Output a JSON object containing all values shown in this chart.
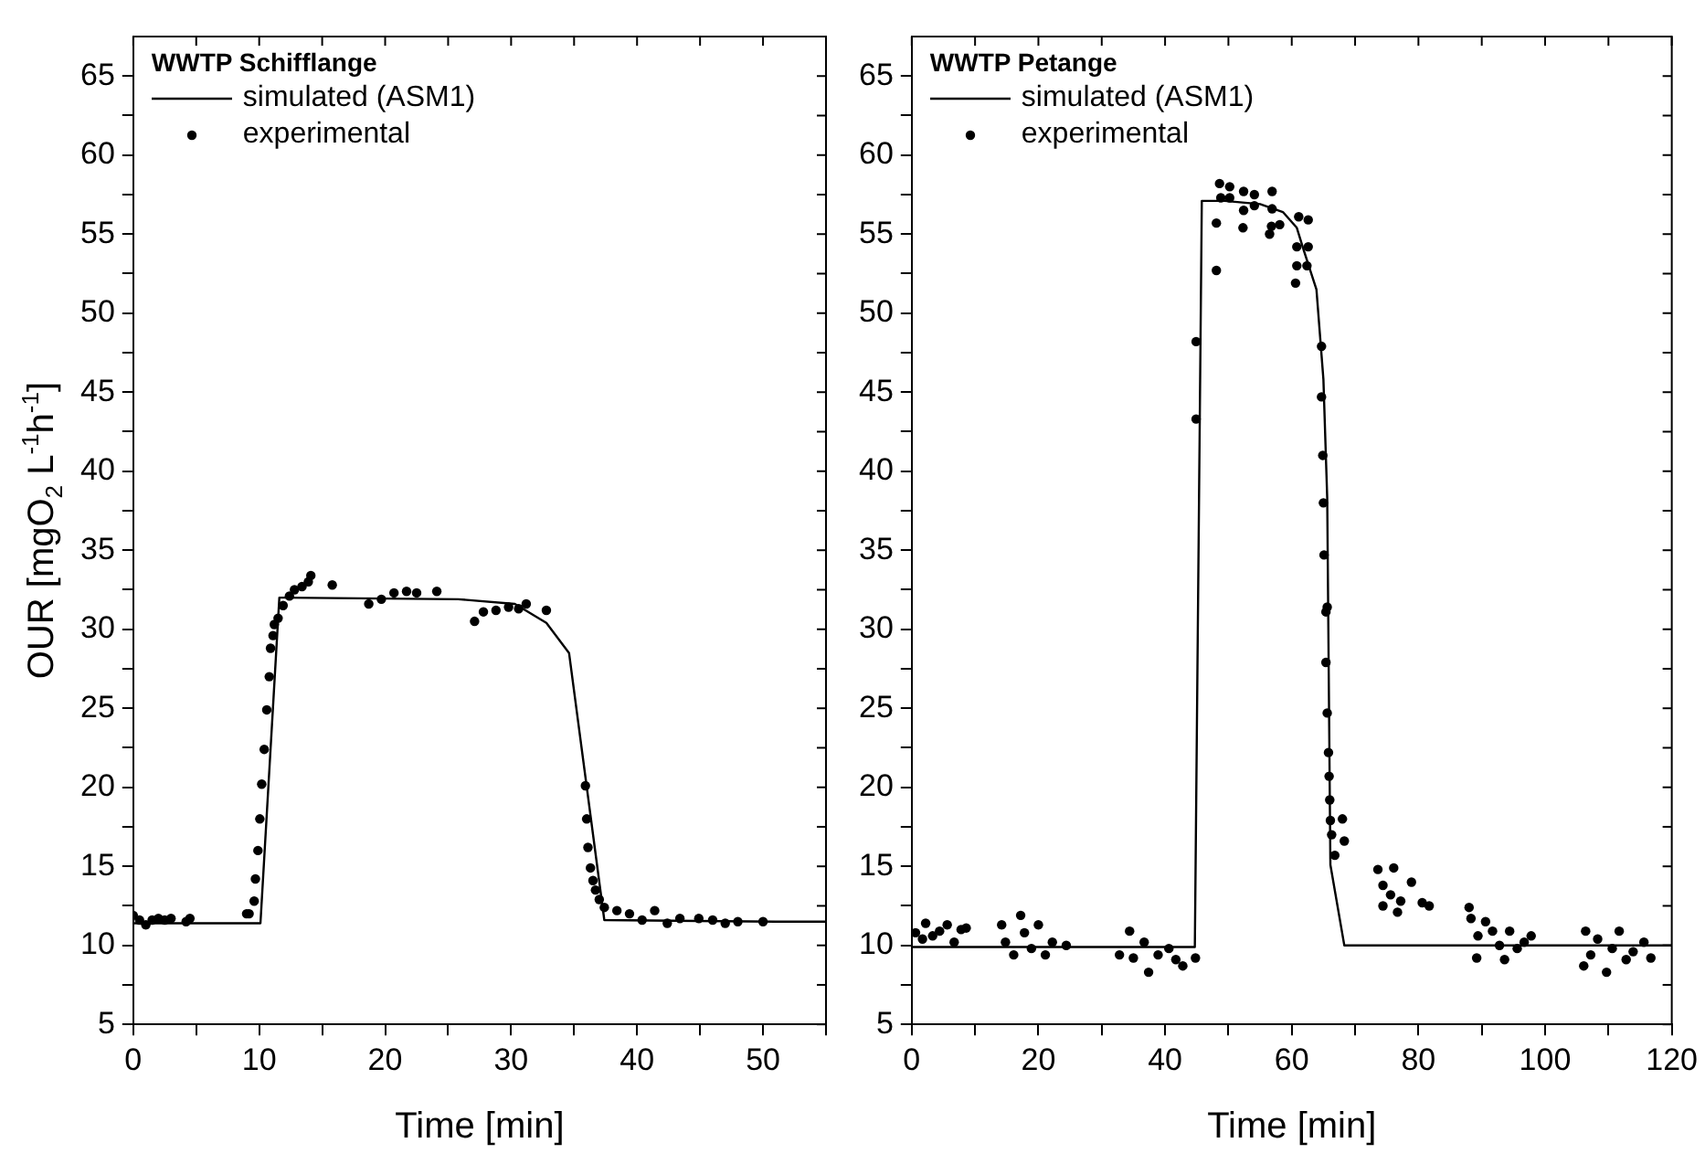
{
  "chart_data": [
    {
      "type": "scatter",
      "ylabel": "OUR [mgO$_{2}$ L$^{-1}$h$^{-1}$]",
      "xlabel": "Time [min]",
      "legend_title": "WWTP Schifflange",
      "legend": "top left",
      "grid": false,
      "xlim": [
        0,
        55
      ],
      "xticks": [
        0,
        {
          "value": 5,
          "label": null
        },
        10,
        {
          "value": 15,
          "label": null
        },
        20,
        {
          "value": 25,
          "label": null
        },
        30,
        {
          "value": 35,
          "label": null
        },
        40,
        {
          "value": 45,
          "label": null
        },
        50,
        {
          "value": 55,
          "label": null
        }
      ],
      "ylim": [
        5,
        67.5
      ],
      "yticks": [
        5,
        {
          "value": 7.5,
          "label": null
        },
        10,
        {
          "value": 12.5,
          "label": null
        },
        15,
        {
          "value": 17.5,
          "label": null
        },
        20,
        {
          "value": 22.5,
          "label": null
        },
        25,
        {
          "value": 27.5,
          "label": null
        },
        30,
        {
          "value": 32.5,
          "label": null
        },
        35,
        {
          "value": 37.5,
          "label": null
        },
        40,
        {
          "value": 42.5,
          "label": null
        },
        45,
        {
          "value": 47.5,
          "label": null
        },
        50,
        {
          "value": 52.5,
          "label": null
        },
        55,
        {
          "value": 57.5,
          "label": null
        },
        60,
        {
          "value": 62.5,
          "label": null
        },
        65
      ],
      "series": [
        {
          "name": "simulated (ASM1)",
          "type": "line",
          "marker": "none",
          "line_style": "solid",
          "color": "#000000",
          "x": [
            0,
            10.1,
            11.6,
            12.1,
            25.8,
            30.3,
            32.8,
            34.6,
            37.4,
            51,
            55
          ],
          "values": [
            11.4,
            11.4,
            32,
            32,
            31.9,
            31.6,
            30.4,
            28.5,
            11.6,
            11.5,
            11.5
          ]
        },
        {
          "name": "experimental",
          "type": "scatter",
          "marker": "circle",
          "color": "#000000",
          "x": [
            0,
            0.5,
            1,
            1.5,
            2,
            2.5,
            3,
            4.2,
            4.5,
            9,
            9.2,
            9.6,
            9.7,
            9.9,
            10.05,
            10.2,
            10.4,
            10.6,
            10.8,
            10.9,
            11.1,
            11.2,
            11.5,
            11.9,
            12.4,
            12.8,
            13.4,
            13.9,
            14.1,
            15.8,
            18.7,
            19.7,
            20.7,
            21.7,
            22.5,
            24.1,
            27.1,
            27.8,
            28.8,
            29.8,
            30.6,
            31.2,
            32.8,
            35.9,
            36,
            36.1,
            36.3,
            36.5,
            36.7,
            37,
            37.4,
            38.4,
            39.4,
            40.4,
            41.4,
            42.4,
            43.4,
            44.9,
            46,
            47,
            48,
            50
          ],
          "values": [
            11.9,
            11.6,
            11.3,
            11.6,
            11.7,
            11.6,
            11.7,
            11.5,
            11.7,
            12,
            12,
            12.8,
            14.2,
            16,
            18,
            20.2,
            22.4,
            24.9,
            27,
            28.8,
            29.6,
            30.3,
            30.7,
            31.5,
            32.1,
            32.5,
            32.7,
            33,
            33.4,
            32.8,
            31.6,
            31.9,
            32.3,
            32.4,
            32.3,
            32.4,
            30.5,
            31.1,
            31.2,
            31.4,
            31.3,
            31.6,
            31.2,
            20.1,
            18,
            16.2,
            14.9,
            14.1,
            13.5,
            12.9,
            12.4,
            12.2,
            12,
            11.6,
            12.2,
            11.4,
            11.7,
            11.7,
            11.6,
            11.4,
            11.5,
            11.5
          ]
        }
      ]
    },
    {
      "type": "scatter",
      "xlabel": "Time [min]",
      "legend_title": "WWTP Petange",
      "legend": "top left",
      "grid": false,
      "xlim": [
        0,
        120
      ],
      "xticks": [
        0,
        {
          "value": 10,
          "label": null
        },
        20,
        {
          "value": 30,
          "label": null
        },
        40,
        {
          "value": 50,
          "label": null
        },
        60,
        {
          "value": 70,
          "label": null
        },
        80,
        {
          "value": 90,
          "label": null
        },
        100,
        {
          "value": 110,
          "label": null
        },
        120
      ],
      "ylim": [
        5,
        67.5
      ],
      "yticks": [
        5,
        {
          "value": 7.5,
          "label": null
        },
        10,
        {
          "value": 12.5,
          "label": null
        },
        15,
        {
          "value": 17.5,
          "label": null
        },
        20,
        {
          "value": 22.5,
          "label": null
        },
        25,
        {
          "value": 27.5,
          "label": null
        },
        30,
        {
          "value": 32.5,
          "label": null
        },
        35,
        {
          "value": 37.5,
          "label": null
        },
        40,
        {
          "value": 42.5,
          "label": null
        },
        45,
        {
          "value": 47.5,
          "label": null
        },
        50,
        {
          "value": 52.5,
          "label": null
        },
        55,
        {
          "value": 57.5,
          "label": null
        },
        60,
        {
          "value": 62.5,
          "label": null
        },
        65
      ],
      "series": [
        {
          "name": "simulated (ASM1)",
          "type": "line",
          "marker": "none",
          "line_style": "solid",
          "color": "#000000",
          "x": [
            0,
            44.7,
            45.8,
            49.4,
            55,
            58.6,
            60.8,
            61.8,
            63.9,
            65,
            65.6,
            66.1,
            68.3,
            120
          ],
          "values": [
            9.9,
            9.9,
            57.1,
            57.1,
            56.9,
            56.4,
            55.4,
            54.1,
            51.5,
            45.8,
            38.3,
            15.1,
            10,
            10
          ]
        },
        {
          "name": "experimental",
          "type": "scatter",
          "marker": "circle",
          "color": "#000000",
          "x": [
            0.6,
            1.7,
            2.2,
            3.3,
            4.4,
            5.6,
            6.7,
            7.8,
            8.6,
            14.2,
            14.8,
            16.1,
            17.2,
            17.8,
            18.9,
            20,
            21.1,
            22.2,
            24.4,
            32.8,
            34.4,
            35,
            36.7,
            37.4,
            38.9,
            40.6,
            41.7,
            42.8,
            44.8,
            44.9,
            44.9,
            48.1,
            48.1,
            48.6,
            50.2,
            48.8,
            50.2,
            52.4,
            54.1,
            56.9,
            52.4,
            54.1,
            56.9,
            52.3,
            56.5,
            56.8,
            58.1,
            61.1,
            62.6,
            60.8,
            62.6,
            60.8,
            62.4,
            60.6,
            64.7,
            64.7,
            64.9,
            65,
            65.1,
            65.6,
            65.4,
            65.4,
            65.6,
            65.8,
            65.9,
            66,
            66.1,
            68,
            66.3,
            68.3,
            66.8,
            73.6,
            76.1,
            74.4,
            75.6,
            77.2,
            78.9,
            80.6,
            81.7,
            76.7,
            74.4,
            88,
            88.3,
            89.4,
            89.2,
            90.6,
            91.7,
            92.8,
            93.6,
            94.4,
            95.6,
            96.7,
            97.8,
            106.4,
            106.1,
            107.2,
            108.3,
            109.7,
            110.6,
            111.7,
            112.8,
            113.9,
            115.6,
            116.7
          ],
          "values": [
            10.8,
            10.4,
            11.4,
            10.6,
            10.9,
            11.3,
            10.2,
            11,
            11.1,
            11.3,
            10.2,
            9.4,
            11.9,
            10.8,
            9.8,
            11.3,
            9.4,
            10.2,
            10,
            9.4,
            10.9,
            9.2,
            10.2,
            8.3,
            9.4,
            9.8,
            9.1,
            8.7,
            9.2,
            43.3,
            48.2,
            52.7,
            55.7,
            58.2,
            58,
            57.3,
            57.3,
            57.7,
            57.5,
            57.7,
            56.5,
            56.8,
            56.6,
            55.4,
            55,
            55.5,
            55.6,
            56.1,
            55.9,
            54.2,
            54.2,
            53,
            53,
            51.9,
            47.9,
            44.7,
            41,
            38,
            34.7,
            31.4,
            31.1,
            27.9,
            24.7,
            22.2,
            20.7,
            19.2,
            17.9,
            18,
            17,
            16.6,
            15.7,
            14.8,
            14.9,
            13.8,
            13.2,
            12.8,
            14,
            12.7,
            12.5,
            12.1,
            12.5,
            12.4,
            11.7,
            10.6,
            9.2,
            11.5,
            10.9,
            10,
            9.1,
            10.9,
            9.8,
            10.2,
            10.6,
            10.9,
            8.7,
            9.4,
            10.4,
            8.3,
            9.8,
            10.9,
            9.1,
            9.6,
            10.2,
            9.2
          ]
        }
      ]
    }
  ]
}
